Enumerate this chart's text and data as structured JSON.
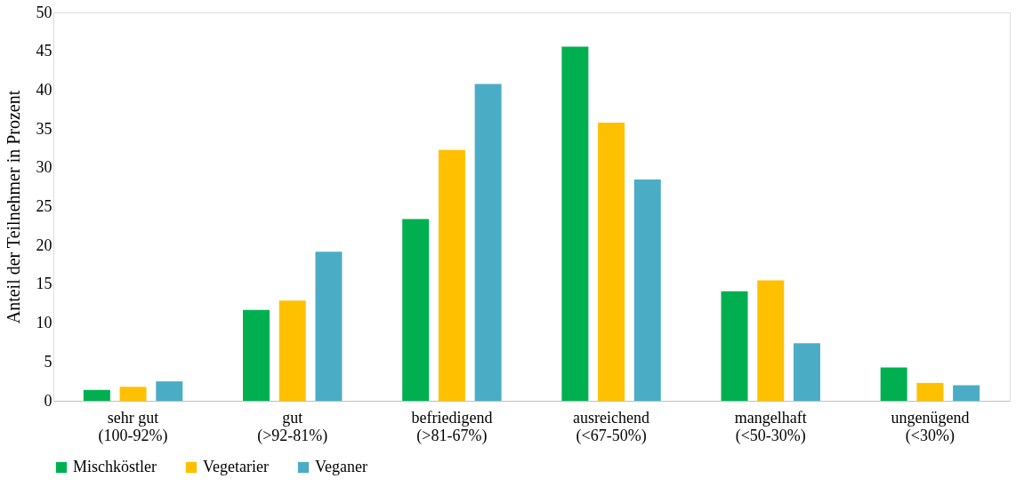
{
  "chart_data": {
    "type": "bar",
    "ylabel": "Anteil der Teilnehmer in Prozent",
    "categories": [
      "sehr gut\n(100-92%)",
      "gut\n(>92-81%)",
      "befriedigend\n(>81-67%)",
      "ausreichend\n(<67-50%)",
      "mangelhaft\n(<50-30%)",
      "ungenügend\n(<30%)"
    ],
    "series": [
      {
        "name": "Mischköstler",
        "color": "#00b050",
        "values": [
          1.4,
          11.7,
          23.4,
          45.6,
          14.1,
          4.3
        ]
      },
      {
        "name": "Vegetarier",
        "color": "#ffc000",
        "values": [
          1.8,
          12.9,
          32.3,
          35.8,
          15.5,
          2.3
        ]
      },
      {
        "name": "Veganer",
        "color": "#4bacc6",
        "values": [
          2.5,
          19.2,
          40.8,
          28.5,
          7.4,
          2.0
        ]
      }
    ],
    "ylim": [
      0,
      50
    ],
    "yticks": [
      0,
      5,
      10,
      15,
      20,
      25,
      30,
      35,
      40,
      45,
      50
    ],
    "grid": false,
    "legend": "bottom"
  }
}
